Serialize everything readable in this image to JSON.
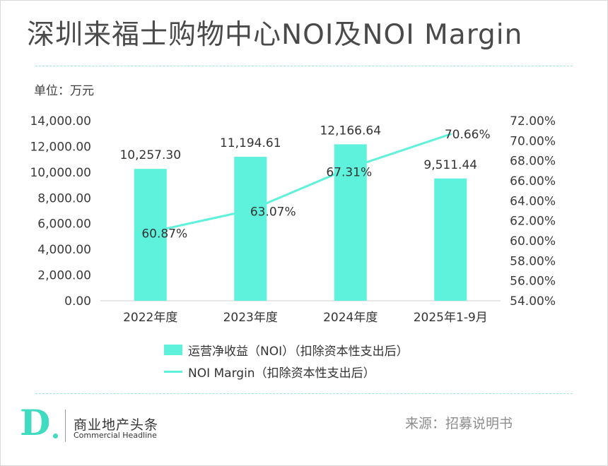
{
  "title": "深圳来福士购物中心NOI及NOI Margin",
  "unit_label": "单位：万元",
  "colors": {
    "bar": "#5ef1dc",
    "line": "#5ef1dc",
    "accent": "#3fdcc2"
  },
  "chart_data": {
    "type": "bar+line",
    "categories": [
      "2022年度",
      "2023年度",
      "2024年度",
      "2025年1-9月"
    ],
    "series": [
      {
        "name": "运营净收益（NOI）（扣除资本性支出后）",
        "type": "bar",
        "axis": "left",
        "values": [
          10257.3,
          11194.61,
          12166.64,
          9511.44
        ],
        "labels": [
          "10,257.30",
          "11,194.61",
          "12,166.64",
          "9,511.44"
        ]
      },
      {
        "name": "NOI Margin（扣除资本性支出后）",
        "type": "line",
        "axis": "right",
        "values": [
          60.87,
          63.07,
          67.31,
          70.66
        ],
        "labels": [
          "60.87%",
          "63.07%",
          "67.31%",
          "70.66%"
        ]
      }
    ],
    "y_left": {
      "min": 0,
      "max": 14000,
      "ticks": [
        "0.00",
        "2,000.00",
        "4,000.00",
        "6,000.00",
        "8,000.00",
        "10,000.00",
        "12,000.00",
        "14,000.00"
      ]
    },
    "y_right": {
      "min": 54,
      "max": 72,
      "ticks": [
        "54.00%",
        "56.00%",
        "58.00%",
        "60.00%",
        "62.00%",
        "64.00%",
        "66.00%",
        "68.00%",
        "70.00%",
        "72.00%"
      ]
    },
    "grid": false,
    "legend_position": "bottom"
  },
  "legend": {
    "bar_label": "运营净收益（NOI）（扣除资本性支出后）",
    "line_label": "NOI Margin（扣除资本性支出后）"
  },
  "footer": {
    "logo_letter": "D",
    "brand_cn": "商业地产头条",
    "brand_en": "Commercial Headline",
    "source": "来源：招募说明书"
  }
}
